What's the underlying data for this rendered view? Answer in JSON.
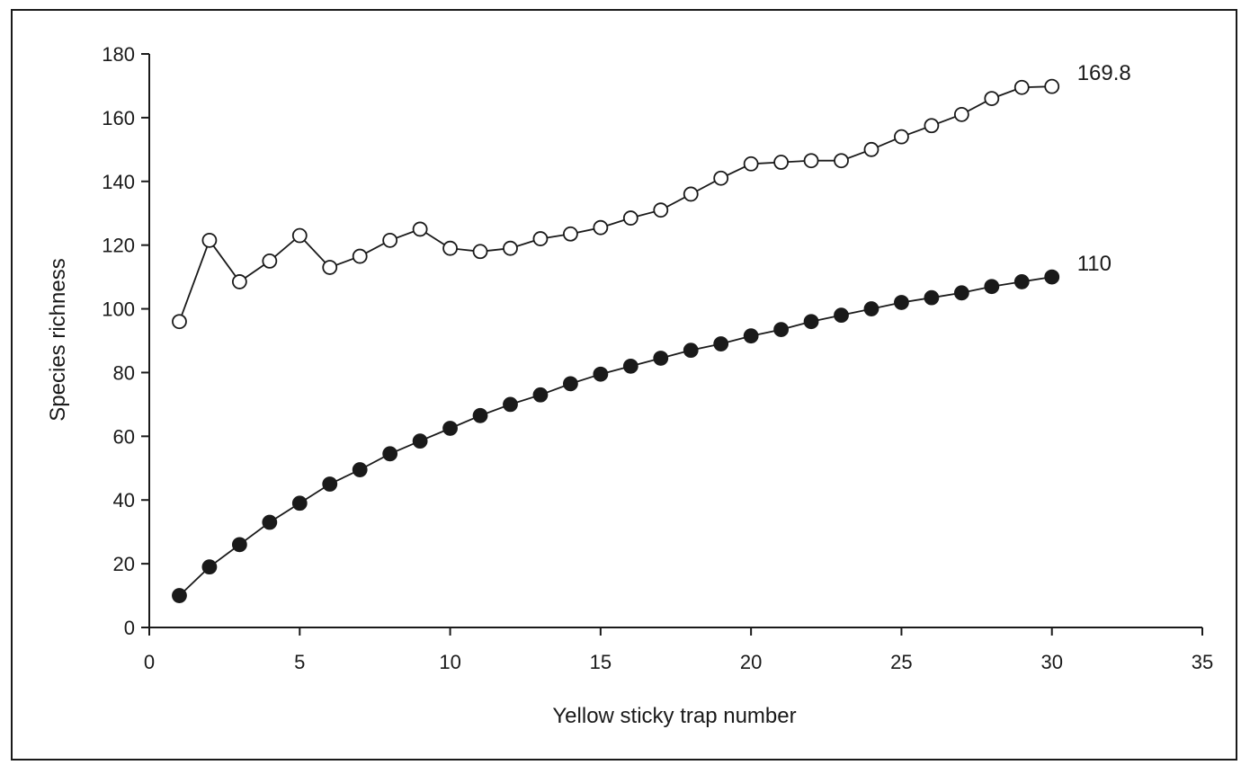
{
  "chart_data": {
    "type": "line",
    "title": "",
    "xlabel": "Yellow sticky trap number",
    "ylabel": "Species richness",
    "xlim": [
      0,
      35
    ],
    "ylim": [
      0,
      180
    ],
    "xticks": [
      0,
      5,
      10,
      15,
      20,
      25,
      30,
      35
    ],
    "yticks": [
      0,
      20,
      40,
      60,
      80,
      100,
      120,
      140,
      160,
      180
    ],
    "grid": false,
    "legend": "none",
    "x": [
      1,
      2,
      3,
      4,
      5,
      6,
      7,
      8,
      9,
      10,
      11,
      12,
      13,
      14,
      15,
      16,
      17,
      18,
      19,
      20,
      21,
      22,
      23,
      24,
      25,
      26,
      27,
      28,
      29,
      30
    ],
    "series": [
      {
        "marker": "open-circle",
        "color": "#1a1a1a",
        "values": [
          96,
          121.5,
          108.5,
          115,
          123,
          113,
          116.5,
          121.5,
          125,
          119,
          118,
          119,
          122,
          123.5,
          125.5,
          128.5,
          131,
          136,
          141,
          145.5,
          146,
          146.5,
          146.5,
          150,
          154,
          157.5,
          161,
          166,
          169.5,
          169.8
        ],
        "end_label": "169.8"
      },
      {
        "marker": "filled-circle",
        "color": "#1a1a1a",
        "values": [
          10,
          19,
          26,
          33,
          39,
          45,
          49.5,
          54.5,
          58.5,
          62.5,
          66.5,
          70,
          73,
          76.5,
          79.5,
          82,
          84.5,
          87,
          89,
          91.5,
          93.5,
          96,
          98,
          100,
          102,
          103.5,
          105,
          107,
          108.5,
          110
        ],
        "end_label": "110"
      }
    ]
  }
}
